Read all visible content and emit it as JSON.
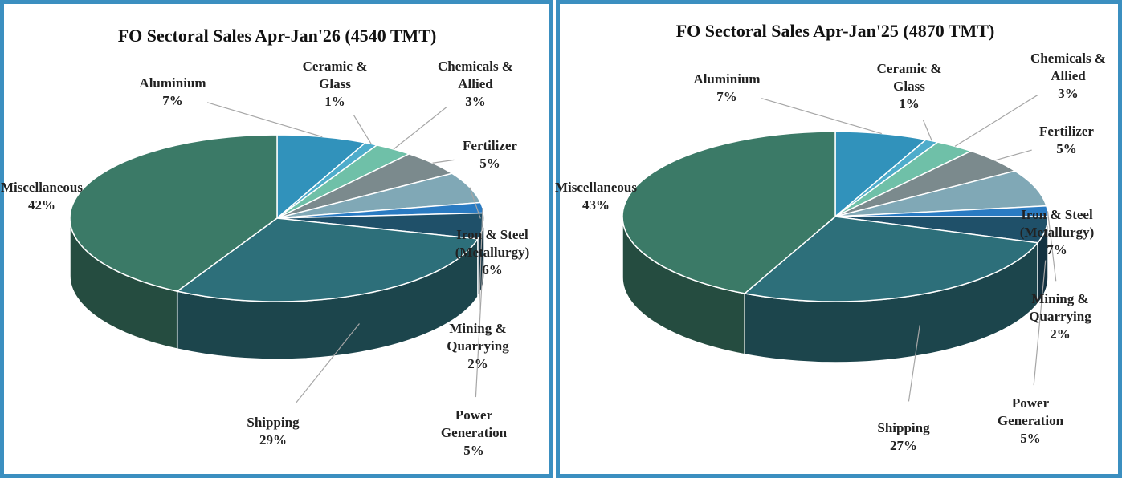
{
  "chart_data": [
    {
      "type": "pie",
      "title": "FO Sectoral Sales Apr-Jan'26 (4540 TMT)",
      "categories": [
        "Aluminium",
        "Ceramic & Glass",
        "Chemicals & Allied",
        "Fertilizer",
        "Iron & Steel (Metallurgy)",
        "Mining & Quarrying",
        "Power Generation",
        "Shipping",
        "Miscellaneous"
      ],
      "values": [
        7,
        1,
        3,
        5,
        6,
        2,
        5,
        29,
        42
      ],
      "value_labels": [
        "7%",
        "1%",
        "3%",
        "5%",
        "6%",
        "2%",
        "5%",
        "29%",
        "42%"
      ],
      "colors": [
        "#3192bb",
        "#4eaccb",
        "#6fc0a8",
        "#7b8a8d",
        "#80a8b6",
        "#2a7bc2",
        "#1f5069",
        "#2d6f7a",
        "#3b7a67"
      ]
    },
    {
      "type": "pie",
      "title": "FO Sectoral Sales Apr-Jan'25 (4870 TMT)",
      "categories": [
        "Aluminium",
        "Ceramic & Glass",
        "Chemicals & Allied",
        "Fertilizer",
        "Iron & Steel (Metallurgy)",
        "Mining & Quarrying",
        "Power Generation",
        "Shipping",
        "Miscellaneous"
      ],
      "values": [
        7,
        1,
        3,
        5,
        7,
        2,
        5,
        27,
        43
      ],
      "value_labels": [
        "7%",
        "1%",
        "3%",
        "5%",
        "7%",
        "2%",
        "5%",
        "27%",
        "43%"
      ],
      "colors": [
        "#3192bb",
        "#4eaccb",
        "#6fc0a8",
        "#7b8a8d",
        "#80a8b6",
        "#2a7bc2",
        "#1f5069",
        "#2d6f7a",
        "#3b7a67"
      ]
    }
  ]
}
